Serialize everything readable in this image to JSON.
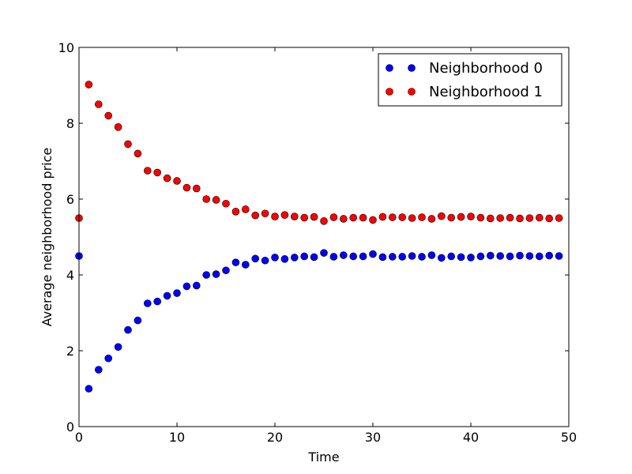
{
  "chart_data": {
    "type": "scatter",
    "title": "",
    "xlabel": "Time",
    "ylabel": "Average neighborhood price",
    "xlim": [
      0,
      50
    ],
    "ylim": [
      0,
      10
    ],
    "xticks": [
      0,
      10,
      20,
      30,
      40,
      50
    ],
    "yticks": [
      0,
      2,
      4,
      6,
      8,
      10
    ],
    "grid": false,
    "legend_position": "top-right",
    "x": [
      0,
      1,
      2,
      3,
      4,
      5,
      6,
      7,
      8,
      9,
      10,
      11,
      12,
      13,
      14,
      15,
      16,
      17,
      18,
      19,
      20,
      21,
      22,
      23,
      24,
      25,
      26,
      27,
      28,
      29,
      30,
      31,
      32,
      33,
      34,
      35,
      36,
      37,
      38,
      39,
      40,
      41,
      42,
      43,
      44,
      45,
      46,
      47,
      48,
      49
    ],
    "series": [
      {
        "name": "Neighborhood 0",
        "color": "#0000ff",
        "values": [
          4.5,
          1.0,
          1.5,
          1.8,
          2.1,
          2.55,
          2.8,
          3.25,
          3.3,
          3.45,
          3.52,
          3.7,
          3.72,
          4.0,
          4.02,
          4.12,
          4.33,
          4.27,
          4.43,
          4.38,
          4.46,
          4.42,
          4.46,
          4.49,
          4.47,
          4.58,
          4.48,
          4.52,
          4.49,
          4.49,
          4.55,
          4.47,
          4.48,
          4.48,
          4.5,
          4.48,
          4.52,
          4.45,
          4.49,
          4.47,
          4.46,
          4.49,
          4.51,
          4.5,
          4.49,
          4.51,
          4.5,
          4.49,
          4.51,
          4.5
        ]
      },
      {
        "name": "Neighborhood 1",
        "color": "#ff0000",
        "values": [
          5.5,
          9.02,
          8.5,
          8.2,
          7.9,
          7.45,
          7.2,
          6.75,
          6.7,
          6.55,
          6.48,
          6.3,
          6.28,
          6.0,
          5.98,
          5.88,
          5.67,
          5.73,
          5.57,
          5.62,
          5.54,
          5.58,
          5.54,
          5.51,
          5.53,
          5.42,
          5.52,
          5.48,
          5.51,
          5.51,
          5.45,
          5.53,
          5.52,
          5.52,
          5.5,
          5.52,
          5.48,
          5.55,
          5.51,
          5.53,
          5.54,
          5.51,
          5.49,
          5.5,
          5.51,
          5.49,
          5.5,
          5.51,
          5.49,
          5.5
        ]
      }
    ]
  }
}
